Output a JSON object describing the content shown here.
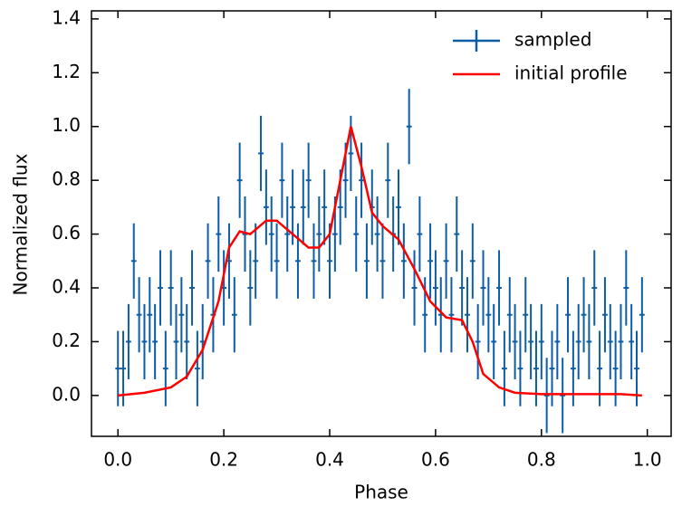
{
  "chart_data": {
    "type": "errorbar",
    "xlabel": "Phase",
    "ylabel": "Normalized flux",
    "xlim": [
      -0.05,
      1.045
    ],
    "ylim": [
      -0.152,
      1.43
    ],
    "xticks": [
      {
        "value": 0,
        "label": "0.0"
      },
      0.2,
      0.4,
      0.6,
      0.8,
      {
        "value": 1,
        "label": "1.0"
      }
    ],
    "yticks": [
      {
        "value": 0,
        "label": "0.0"
      },
      0.2,
      0.4,
      0.6,
      0.8,
      {
        "value": 1,
        "label": "1.0"
      },
      1.2,
      1.4
    ],
    "legend": "upper right",
    "series": [
      {
        "name": "sampled",
        "color": "#0C5DA5",
        "yerr": 0.14,
        "xerr": 0.005,
        "x": [
          0.0,
          0.01,
          0.02,
          0.03,
          0.04,
          0.05,
          0.06,
          0.07,
          0.08,
          0.09,
          0.1,
          0.11,
          0.12,
          0.13,
          0.14,
          0.15,
          0.16,
          0.17,
          0.18,
          0.19,
          0.2,
          0.21,
          0.22,
          0.23,
          0.24,
          0.25,
          0.26,
          0.27,
          0.28,
          0.29,
          0.3,
          0.31,
          0.32,
          0.33,
          0.34,
          0.35,
          0.36,
          0.37,
          0.38,
          0.39,
          0.4,
          0.41,
          0.42,
          0.43,
          0.44,
          0.45,
          0.46,
          0.47,
          0.48,
          0.49,
          0.5,
          0.51,
          0.52,
          0.53,
          0.54,
          0.55,
          0.56,
          0.57,
          0.58,
          0.59,
          0.6,
          0.61,
          0.62,
          0.63,
          0.64,
          0.65,
          0.66,
          0.67,
          0.68,
          0.69,
          0.7,
          0.71,
          0.72,
          0.73,
          0.74,
          0.75,
          0.76,
          0.77,
          0.78,
          0.79,
          0.8,
          0.81,
          0.82,
          0.83,
          0.84,
          0.85,
          0.86,
          0.87,
          0.88,
          0.89,
          0.9,
          0.91,
          0.92,
          0.93,
          0.94,
          0.95,
          0.96,
          0.97,
          0.98,
          0.99
        ],
        "values": [
          0.1,
          0.1,
          0.2,
          0.5,
          0.3,
          0.2,
          0.3,
          0.2,
          0.4,
          0.1,
          0.4,
          0.2,
          0.3,
          0.2,
          0.4,
          0.1,
          0.2,
          0.5,
          0.3,
          0.6,
          0.4,
          0.5,
          0.3,
          0.8,
          0.6,
          0.4,
          0.5,
          0.9,
          0.7,
          0.6,
          0.5,
          0.8,
          0.6,
          0.7,
          0.5,
          0.7,
          0.8,
          0.5,
          0.6,
          0.7,
          0.5,
          0.6,
          0.7,
          0.8,
          0.9,
          0.6,
          0.8,
          0.5,
          0.7,
          0.6,
          0.5,
          0.8,
          0.6,
          0.7,
          0.5,
          1.0,
          0.4,
          0.6,
          0.3,
          0.5,
          0.4,
          0.3,
          0.5,
          0.3,
          0.6,
          0.4,
          0.3,
          0.5,
          0.2,
          0.4,
          0.3,
          0.2,
          0.4,
          0.1,
          0.3,
          0.2,
          0.1,
          0.3,
          0.2,
          0.1,
          0.2,
          0.0,
          0.1,
          0.2,
          0.0,
          0.3,
          0.1,
          0.2,
          0.3,
          0.2,
          0.4,
          0.1,
          0.3,
          0.2,
          0.1,
          0.2,
          0.4,
          0.2,
          0.1,
          0.3
        ]
      },
      {
        "name": "initial profile",
        "color": "#FF0000",
        "x": [
          0,
          0.05,
          0.1,
          0.13,
          0.16,
          0.19,
          0.21,
          0.23,
          0.25,
          0.28,
          0.3,
          0.33,
          0.36,
          0.38,
          0.4,
          0.42,
          0.44,
          0.46,
          0.48,
          0.5,
          0.53,
          0.56,
          0.59,
          0.62,
          0.65,
          0.67,
          0.69,
          0.72,
          0.75,
          0.8,
          0.85,
          0.9,
          0.95,
          0.99
        ],
        "values": [
          0,
          0.01,
          0.03,
          0.07,
          0.17,
          0.35,
          0.55,
          0.61,
          0.6,
          0.65,
          0.65,
          0.6,
          0.55,
          0.55,
          0.6,
          0.8,
          1.0,
          0.85,
          0.68,
          0.63,
          0.58,
          0.47,
          0.35,
          0.29,
          0.28,
          0.2,
          0.08,
          0.03,
          0.01,
          0.005,
          0.005,
          0.005,
          0.005,
          0
        ]
      }
    ]
  }
}
